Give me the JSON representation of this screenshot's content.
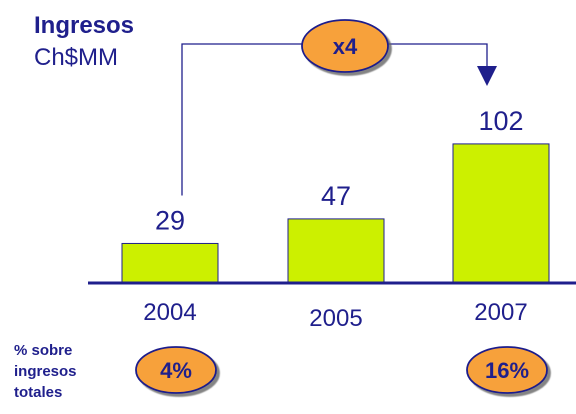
{
  "chart_data": {
    "type": "bar",
    "title": "Ingresos",
    "subtitle": "Ch$MM",
    "categories": [
      "2004",
      "2005",
      "2007"
    ],
    "values": [
      29,
      47,
      102
    ],
    "ylim": [
      0,
      110
    ],
    "bar_color": "#ccf000",
    "axis_color": "#1f1f8c",
    "text_color": "#1f1f8c",
    "growth_annotation": {
      "label": "x4",
      "from": "2004",
      "to": "2007"
    },
    "share_label": [
      "% sobre",
      "ingresos",
      "totales"
    ],
    "share_values": [
      {
        "category": "2004",
        "label": "4%"
      },
      {
        "category": "2007",
        "label": "16%"
      }
    ],
    "badge_color": "#f7a13a"
  }
}
